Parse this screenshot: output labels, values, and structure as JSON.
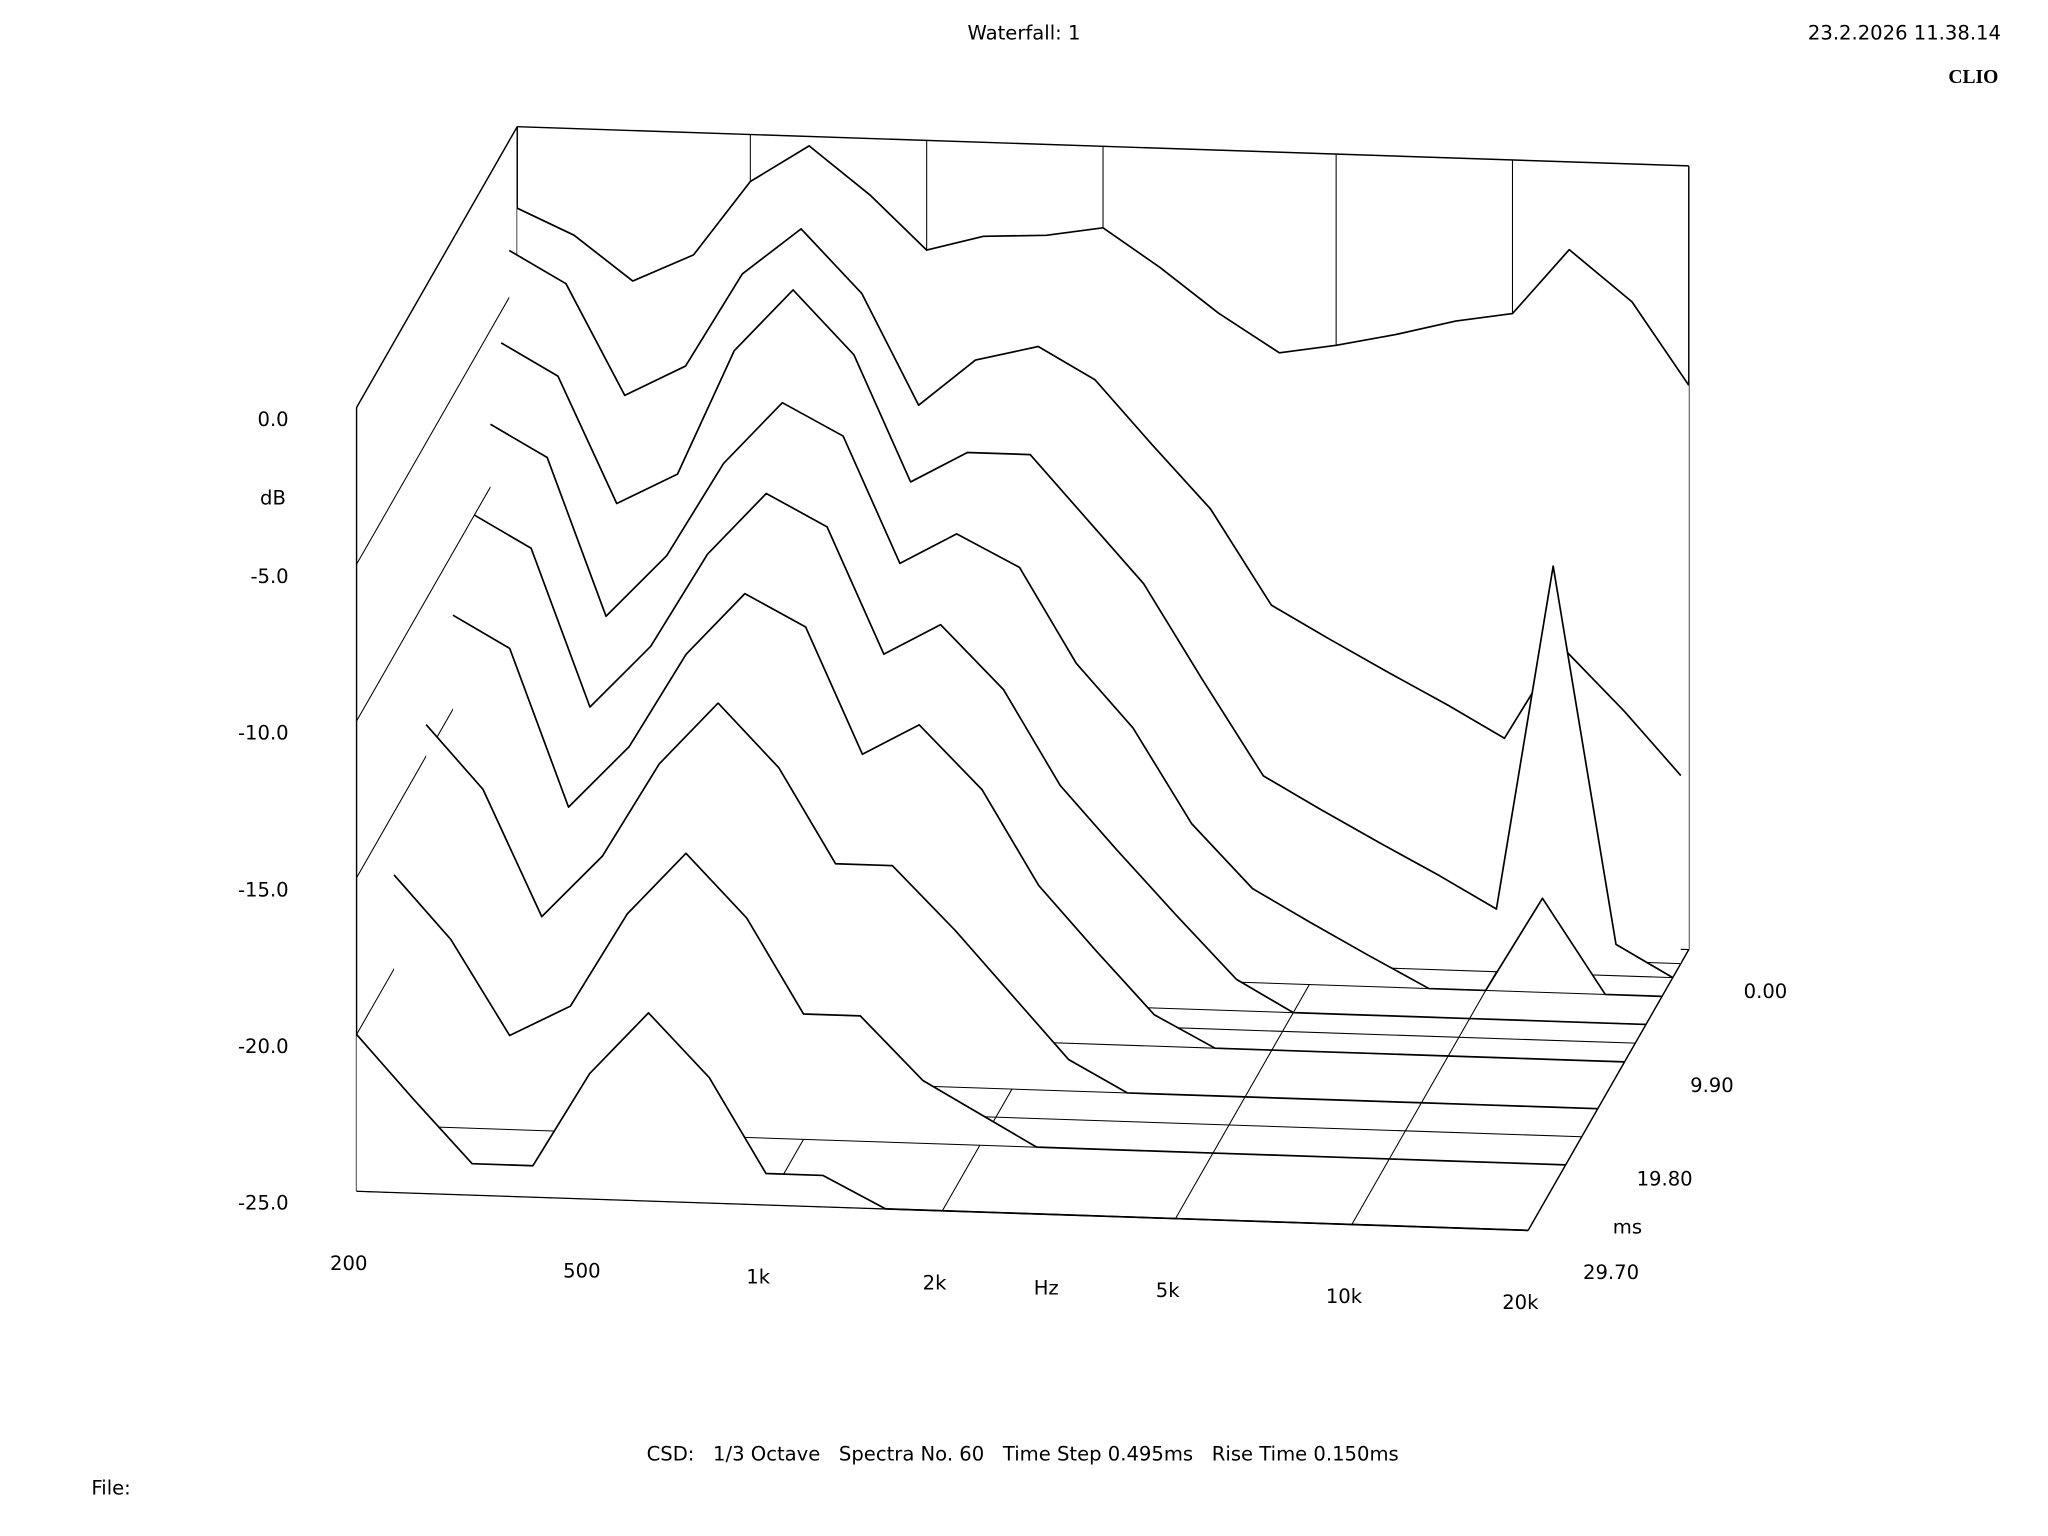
{
  "chart_data": {
    "type": "waterfall",
    "title": "Waterfall: 1",
    "timestamp": "23.2.2026 11.38.14",
    "brand": "CLIO",
    "ylabel": "dB",
    "xlabel": "Hz",
    "zlabel": "ms",
    "footer": "CSD:   1/3 Octave   Spectra No. 60   Time Step 0.495ms   Rise Time 0.150ms",
    "file_label": "File:",
    "log_x": true,
    "xlim": [
      200,
      20000
    ],
    "xticks": [
      200,
      500,
      {
        "value": 1000,
        "label": "1k"
      },
      {
        "value": 2000,
        "label": "2k"
      },
      {
        "value": 5000,
        "label": "5k"
      },
      {
        "value": 10000,
        "label": "10k"
      },
      {
        "value": 20000,
        "label": "20k"
      }
    ],
    "ylim": [
      -25,
      0
    ],
    "yticks": [
      {
        "value": 0,
        "label": "0.0"
      },
      {
        "value": -5,
        "label": "-5.0"
      },
      {
        "value": -10,
        "label": "-10.0"
      },
      {
        "value": -15,
        "label": "-15.0"
      },
      {
        "value": -20,
        "label": "-20.0"
      },
      {
        "value": -25,
        "label": "-25.0"
      }
    ],
    "zlim": [
      0,
      29.7
    ],
    "zticks": [
      {
        "value": 0,
        "label": "0.00"
      },
      {
        "value": 9.9,
        "label": "9.90"
      },
      {
        "value": 19.8,
        "label": "19.80"
      },
      {
        "value": 29.7,
        "label": "29.70"
      }
    ],
    "color": "#000000",
    "x": [
      200,
      250,
      315,
      400,
      500,
      630,
      800,
      1000,
      1250,
      1600,
      2000,
      2500,
      3150,
      4000,
      5000,
      6300,
      8000,
      10000,
      12500,
      16000,
      20000
    ],
    "slices": [
      {
        "t": 0,
        "values": [
          -2.6,
          -3.4,
          -4.8,
          -3.9,
          -1.5,
          -0.3,
          -1.8,
          -3.5,
          -3.0,
          -2.9,
          -2.6,
          -3.8,
          -5.2,
          -6.4,
          -6.1,
          -5.7,
          -5.2,
          -4.9,
          -2.8,
          -4.4,
          -7.0
        ]
      },
      {
        "t": 1.485,
        "values": [
          -3.5,
          -4.5,
          -8,
          -7,
          -4,
          -2.5,
          -4.5,
          -8,
          -6.5,
          -6,
          -7,
          -9,
          -11,
          -14,
          -15,
          -16,
          -17,
          -18,
          -15,
          -17,
          -19
        ]
      },
      {
        "t": 2.97,
        "values": [
          -6,
          -7,
          -11,
          -10,
          -6,
          -4,
          -6,
          -10,
          -9,
          -9,
          -11,
          -13,
          -16,
          -19,
          -20,
          -21,
          -22,
          -23,
          -12,
          -24,
          -25
        ]
      },
      {
        "t": 4.95,
        "values": [
          -8,
          -9,
          -14,
          -12,
          -9,
          -7,
          -8,
          -12,
          -11,
          -12,
          -15,
          -17,
          -20,
          -22,
          -23,
          -24,
          -25,
          -25,
          -22,
          -25,
          -25
        ]
      },
      {
        "t": 7.92,
        "values": [
          -10,
          -11,
          -16,
          -14,
          -11,
          -9,
          -10,
          -14,
          -13,
          -15,
          -18,
          -20,
          -22,
          -24,
          -25,
          -25,
          -25,
          -25,
          -25,
          -25,
          -25
        ]
      },
      {
        "t": 11.88,
        "values": [
          -12,
          -13,
          -18,
          -16,
          -13,
          -11,
          -12,
          -16,
          -15,
          -17,
          -20,
          -22,
          -24,
          -25,
          -25,
          -25,
          -25,
          -25,
          -25,
          -25,
          -25
        ]
      },
      {
        "t": 16.83,
        "values": [
          -14,
          -16,
          -20,
          -18,
          -15,
          -13,
          -15,
          -18,
          -18,
          -20,
          -22,
          -24,
          -25,
          -25,
          -25,
          -25,
          -25,
          -25,
          -25,
          -25,
          -25
        ]
      },
      {
        "t": 22.77,
        "values": [
          -17,
          -19,
          -22,
          -21,
          -18,
          -16,
          -18,
          -21,
          -21,
          -23,
          -24,
          -25,
          -25,
          -25,
          -25,
          -25,
          -25,
          -25,
          -25,
          -25,
          -25
        ]
      },
      {
        "t": 29.7,
        "values": [
          -20,
          -22,
          -24,
          -24,
          -21,
          -19,
          -21,
          -24,
          -24,
          -25,
          -25,
          -25,
          -25,
          -25,
          -25,
          -25,
          -25,
          -25,
          -25,
          -25,
          -25
        ]
      }
    ]
  }
}
